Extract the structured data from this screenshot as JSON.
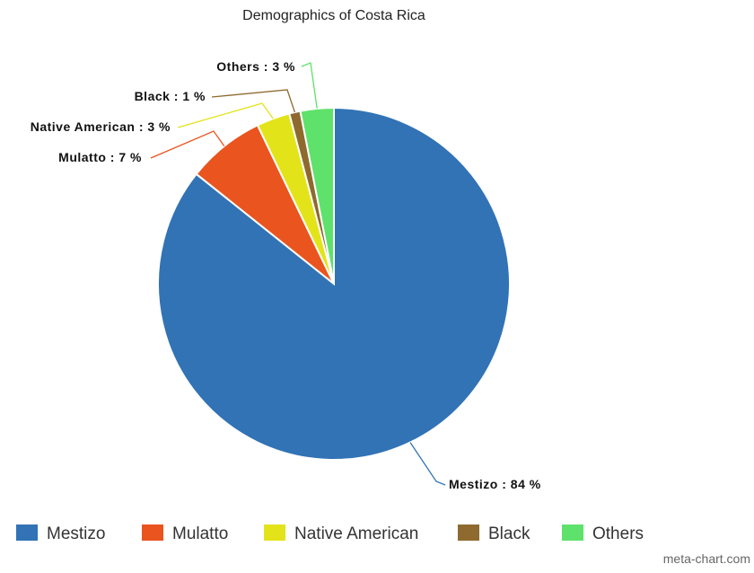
{
  "chart_data": {
    "type": "pie",
    "title": "Demographics of Costa Rica",
    "slices": [
      {
        "name": "Mestizo",
        "value": 84,
        "label": "Mestizo : 84 %",
        "color": "#3173b5"
      },
      {
        "name": "Mulatto",
        "value": 7,
        "label": "Mulatto : 7 %",
        "color": "#ea541e"
      },
      {
        "name": "Native American",
        "value": 3,
        "label": "Native American : 3 %",
        "color": "#e3e31a"
      },
      {
        "name": "Black",
        "value": 1,
        "label": "Black : 1 %",
        "color": "#8e6a2f"
      },
      {
        "name": "Others",
        "value": 3,
        "label": "Others : 3 %",
        "color": "#5ee26b"
      }
    ],
    "legend_position": "bottom-left",
    "credits": "meta-chart.com"
  }
}
